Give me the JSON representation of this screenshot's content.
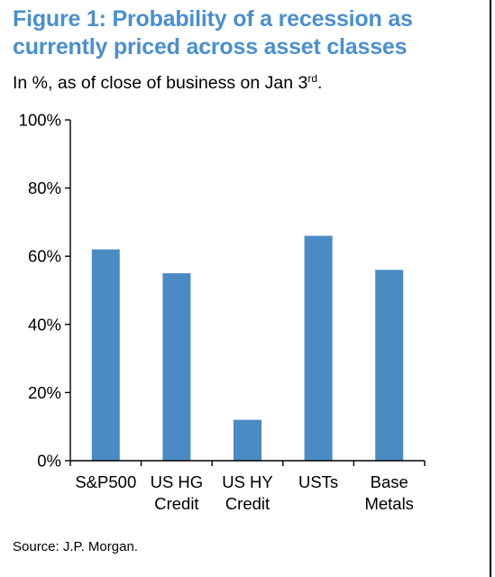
{
  "title_line1": "Figure 1: Probability of a recession as",
  "title_line2": "currently priced across asset classes",
  "subtitle_main": "In %, as of close of business on Jan 3",
  "subtitle_sup": "rd",
  "subtitle_end": ".",
  "source": "Source: J.P. Morgan.",
  "colors": {
    "title": "#4a8fd0",
    "bar": "#4a8bc4",
    "axis": "#000000"
  },
  "chart_data": {
    "type": "bar",
    "categories": [
      [
        "S&P500"
      ],
      [
        "US HG",
        "Credit"
      ],
      [
        "US HY",
        "Credit"
      ],
      [
        "USTs"
      ],
      [
        "Base",
        "Metals"
      ]
    ],
    "values": [
      62,
      55,
      12,
      66,
      56
    ],
    "yticks": [
      "0%",
      "20%",
      "40%",
      "60%",
      "80%",
      "100%"
    ],
    "ylim": [
      0,
      100
    ],
    "ytick_step": 20,
    "grid": false,
    "legend": "none"
  }
}
